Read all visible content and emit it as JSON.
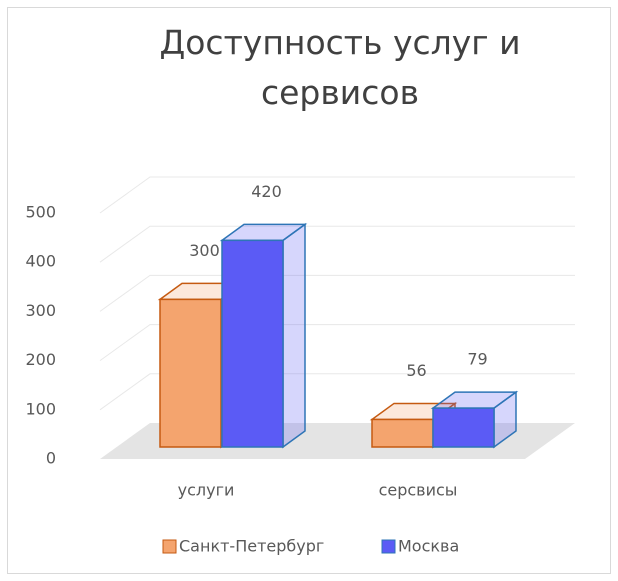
{
  "chart_data": {
    "type": "bar3d",
    "title": "Доступность услуг и сервисов",
    "categories": [
      "услуги",
      "серсвисы"
    ],
    "series": [
      {
        "name": "Санкт-Петербург",
        "color": "#f4a46e",
        "edge": "#c55a11",
        "values": [
          300,
          56
        ]
      },
      {
        "name": "Москва",
        "color": "#5b5bf5",
        "edge": "#2e75b6",
        "values": [
          420,
          79
        ]
      }
    ],
    "ylim": [
      0,
      500
    ],
    "yticks": [
      0,
      100,
      200,
      300,
      400,
      500
    ],
    "grid": true,
    "legend": "bottom"
  }
}
